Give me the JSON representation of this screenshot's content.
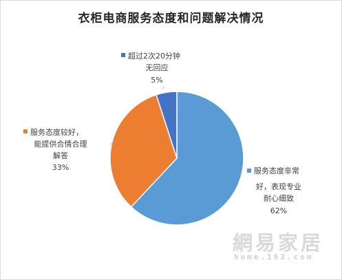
{
  "chart_data": {
    "type": "pie",
    "title": "衣柜电商服务态度和问题解决情况",
    "slices": [
      {
        "label_lines": [
          "服务态度非常",
          "好，表现专业",
          "耐心细致"
        ],
        "value": 62,
        "value_label": "62%",
        "color": "#5b9bd5"
      },
      {
        "label_lines": [
          "服务态度较好，",
          "能提供合情合理",
          "解答"
        ],
        "value": 33,
        "value_label": "33%",
        "color": "#ed7d31"
      },
      {
        "label_lines": [
          "超过2次20分钟",
          "无回应"
        ],
        "value": 5,
        "value_label": "5%",
        "color": "#4472c4"
      }
    ]
  },
  "watermark": {
    "text_cn": "網易家居",
    "text_en": "home.163.com"
  }
}
